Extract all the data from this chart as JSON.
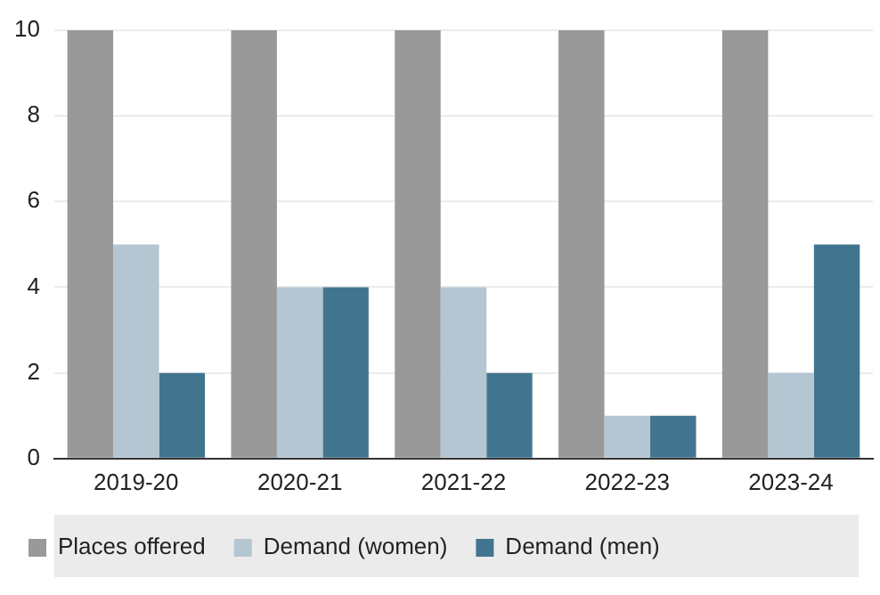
{
  "chart_data": {
    "type": "bar",
    "categories": [
      "2019-20",
      "2020-21",
      "2021-22",
      "2022-23",
      "2023-24"
    ],
    "series": [
      {
        "name": "Places offered",
        "color": "#999999",
        "values": [
          10,
          10,
          10,
          10,
          10
        ]
      },
      {
        "name": "Demand (women)",
        "color": "#b3c6d1",
        "values": [
          5,
          4,
          4,
          1,
          2
        ]
      },
      {
        "name": "Demand (men)",
        "color": "#41758f",
        "values": [
          2,
          4,
          2,
          1,
          5
        ]
      }
    ],
    "ylim": [
      0,
      10
    ],
    "yticks": [
      0,
      2,
      4,
      6,
      8,
      10
    ],
    "grid": "y",
    "legend": "bottom"
  }
}
